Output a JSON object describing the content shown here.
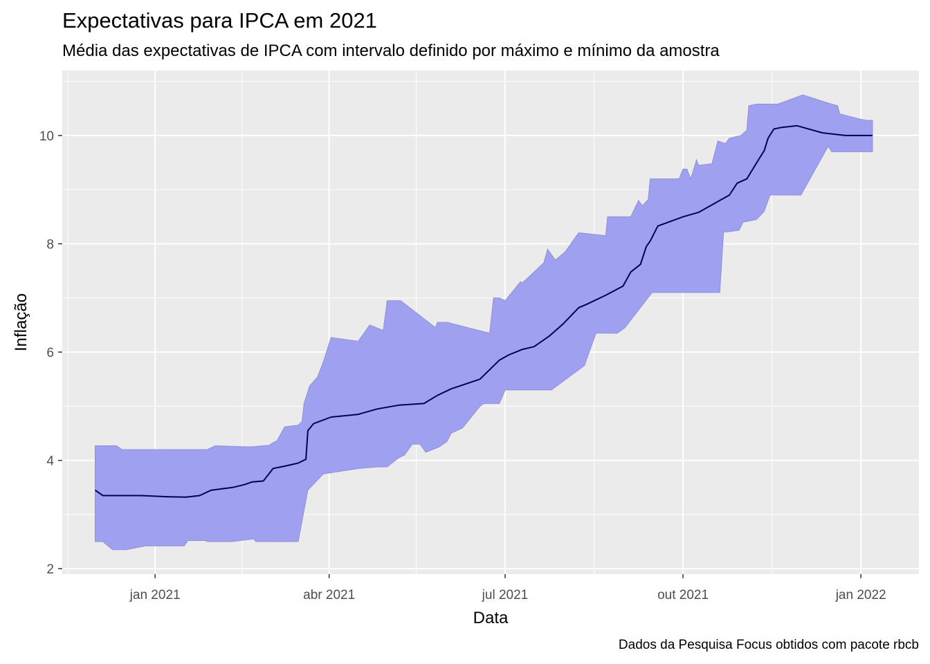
{
  "chart_data": {
    "type": "area",
    "title": "Expectativas para IPCA em 2021",
    "subtitle": "Média das expectativas de IPCA com intervalo definido por máximo e mínimo da amostra",
    "xlabel": "Data",
    "ylabel": "Inflação",
    "caption": "Dados da Pesquisa Focus obtidos com pacote rbcb",
    "x_ticks": [
      {
        "date": "2021-01-01",
        "label": "jan 2021"
      },
      {
        "date": "2021-04-01",
        "label": "abr 2021"
      },
      {
        "date": "2021-07-01",
        "label": "jul 2021"
      },
      {
        "date": "2021-10-01",
        "label": "out 2021"
      },
      {
        "date": "2022-01-01",
        "label": "jan 2022"
      }
    ],
    "y_ticks": [
      2,
      4,
      6,
      8,
      10
    ],
    "xlim": [
      "2020-11-14",
      "2022-01-31"
    ],
    "ylim": [
      1.9,
      11.2
    ],
    "grid": true,
    "colors": {
      "band": "#a0a0f0",
      "band_edge": "#8f8fd9",
      "line": "#00004d",
      "panel": "#ebebeb",
      "grid": "#ffffff"
    },
    "series": [
      {
        "name": "max",
        "x": [
          "2020-12-01",
          "2020-12-12",
          "2020-12-15",
          "2021-01-28",
          "2021-01-31",
          "2021-02-01",
          "2021-02-18",
          "2021-02-20",
          "2021-03-01",
          "2021-03-03",
          "2021-03-05",
          "2021-03-09",
          "2021-03-16",
          "2021-03-18",
          "2021-03-19",
          "2021-03-22",
          "2021-03-26",
          "2021-03-29",
          "2021-04-02",
          "2021-04-16",
          "2021-04-22",
          "2021-04-29",
          "2021-05-01",
          "2021-05-05",
          "2021-05-08",
          "2021-05-26",
          "2021-05-27",
          "2021-06-01",
          "2021-06-23",
          "2021-06-25",
          "2021-06-28",
          "2021-07-01",
          "2021-07-09",
          "2021-07-10",
          "2021-07-21",
          "2021-07-23",
          "2021-07-27",
          "2021-08-01",
          "2021-08-08",
          "2021-08-09",
          "2021-08-22",
          "2021-08-23",
          "2021-09-04",
          "2021-09-06",
          "2021-09-08",
          "2021-09-10",
          "2021-09-13",
          "2021-09-14",
          "2021-09-27",
          "2021-09-29",
          "2021-10-01",
          "2021-10-03",
          "2021-10-05",
          "2021-10-08",
          "2021-10-09",
          "2021-10-16",
          "2021-10-19",
          "2021-10-23",
          "2021-10-25",
          "2021-10-31",
          "2021-11-03",
          "2021-11-04",
          "2021-11-08",
          "2021-11-12",
          "2021-11-19",
          "2021-12-02",
          "2021-12-15",
          "2021-12-20",
          "2021-12-21",
          "2022-01-01",
          "2022-01-04",
          "2022-01-07"
        ],
        "values": [
          4.27,
          4.27,
          4.2,
          4.2,
          4.25,
          4.27,
          4.25,
          4.25,
          4.28,
          4.33,
          4.36,
          4.62,
          4.65,
          4.72,
          5.05,
          5.38,
          5.54,
          5.82,
          6.27,
          6.2,
          6.5,
          6.4,
          6.95,
          6.95,
          6.95,
          6.45,
          6.55,
          6.55,
          6.35,
          7.0,
          7.0,
          6.95,
          7.3,
          7.28,
          7.65,
          7.9,
          7.7,
          7.85,
          8.2,
          8.2,
          8.15,
          8.5,
          8.5,
          8.65,
          8.8,
          8.7,
          8.82,
          9.2,
          9.2,
          9.2,
          9.38,
          9.38,
          9.2,
          9.55,
          9.45,
          9.48,
          9.9,
          9.85,
          9.95,
          10.0,
          10.1,
          10.55,
          10.58,
          10.58,
          10.58,
          10.75,
          10.6,
          10.55,
          10.4,
          10.3,
          10.28,
          10.28
        ]
      },
      {
        "name": "min",
        "x": [
          "2020-12-01",
          "2020-12-05",
          "2020-12-10",
          "2020-12-17",
          "2020-12-27",
          "2021-01-16",
          "2021-01-18",
          "2021-01-27",
          "2021-01-28",
          "2021-01-29",
          "2021-02-10",
          "2021-02-21",
          "2021-02-22",
          "2021-02-24",
          "2021-03-16",
          "2021-03-21",
          "2021-03-29",
          "2021-04-07",
          "2021-04-16",
          "2021-04-26",
          "2021-05-01",
          "2021-05-07",
          "2021-05-10",
          "2021-05-14",
          "2021-05-18",
          "2021-05-21",
          "2021-05-28",
          "2021-06-01",
          "2021-06-03",
          "2021-06-09",
          "2021-06-18",
          "2021-06-20",
          "2021-06-28",
          "2021-07-01",
          "2021-07-11",
          "2021-07-25",
          "2021-08-11",
          "2021-08-17",
          "2021-08-28",
          "2021-09-01",
          "2021-09-15",
          "2021-09-16",
          "2021-09-24",
          "2021-10-20",
          "2021-10-22",
          "2021-10-24",
          "2021-10-30",
          "2021-11-01",
          "2021-11-08",
          "2021-11-12",
          "2021-11-13",
          "2021-11-15",
          "2021-11-17",
          "2021-11-22",
          "2021-11-25",
          "2021-12-01",
          "2021-12-15",
          "2021-12-17",
          "2022-01-07"
        ],
        "values": [
          2.5,
          2.5,
          2.35,
          2.35,
          2.42,
          2.42,
          2.52,
          2.52,
          2.5,
          2.5,
          2.5,
          2.55,
          2.5,
          2.5,
          2.5,
          3.45,
          3.75,
          3.8,
          3.85,
          3.88,
          3.88,
          4.05,
          4.1,
          4.3,
          4.3,
          4.15,
          4.25,
          4.35,
          4.5,
          4.6,
          5.0,
          5.05,
          5.05,
          5.3,
          5.3,
          5.3,
          5.75,
          6.35,
          6.35,
          6.45,
          7.1,
          7.1,
          7.1,
          7.1,
          8.22,
          8.22,
          8.25,
          8.4,
          8.45,
          8.6,
          8.7,
          8.9,
          8.9,
          8.9,
          8.9,
          8.9,
          9.8,
          9.7,
          9.7
        ]
      },
      {
        "name": "media",
        "x": [
          "2020-12-01",
          "2020-12-05",
          "2020-12-25",
          "2021-01-07",
          "2021-01-17",
          "2021-01-24",
          "2021-01-30",
          "2021-02-10",
          "2021-02-16",
          "2021-02-20",
          "2021-02-26",
          "2021-03-03",
          "2021-03-10",
          "2021-03-16",
          "2021-03-20",
          "2021-03-21",
          "2021-03-24",
          "2021-04-02",
          "2021-04-16",
          "2021-04-26",
          "2021-05-07",
          "2021-05-20",
          "2021-05-27",
          "2021-06-03",
          "2021-06-18",
          "2021-06-28",
          "2021-07-03",
          "2021-07-10",
          "2021-07-16",
          "2021-07-24",
          "2021-07-31",
          "2021-08-08",
          "2021-08-12",
          "2021-08-22",
          "2021-08-31",
          "2021-09-04",
          "2021-09-09",
          "2021-09-12",
          "2021-09-14",
          "2021-09-18",
          "2021-09-22",
          "2021-10-01",
          "2021-10-09",
          "2021-10-16",
          "2021-10-25",
          "2021-10-29",
          "2021-11-03",
          "2021-11-09",
          "2021-11-12",
          "2021-11-14",
          "2021-11-17",
          "2021-11-21",
          "2021-11-29",
          "2021-12-12",
          "2021-12-24",
          "2022-01-07"
        ],
        "values": [
          3.45,
          3.35,
          3.35,
          3.33,
          3.32,
          3.35,
          3.45,
          3.5,
          3.55,
          3.6,
          3.62,
          3.85,
          3.9,
          3.95,
          4.02,
          4.55,
          4.68,
          4.8,
          4.85,
          4.95,
          5.02,
          5.05,
          5.2,
          5.32,
          5.5,
          5.85,
          5.95,
          6.05,
          6.1,
          6.3,
          6.52,
          6.82,
          6.88,
          7.05,
          7.22,
          7.48,
          7.62,
          7.95,
          8.05,
          8.33,
          8.38,
          8.5,
          8.58,
          8.72,
          8.9,
          9.12,
          9.2,
          9.55,
          9.72,
          9.95,
          10.12,
          10.15,
          10.18,
          10.05,
          10.0,
          10.0
        ]
      }
    ]
  }
}
